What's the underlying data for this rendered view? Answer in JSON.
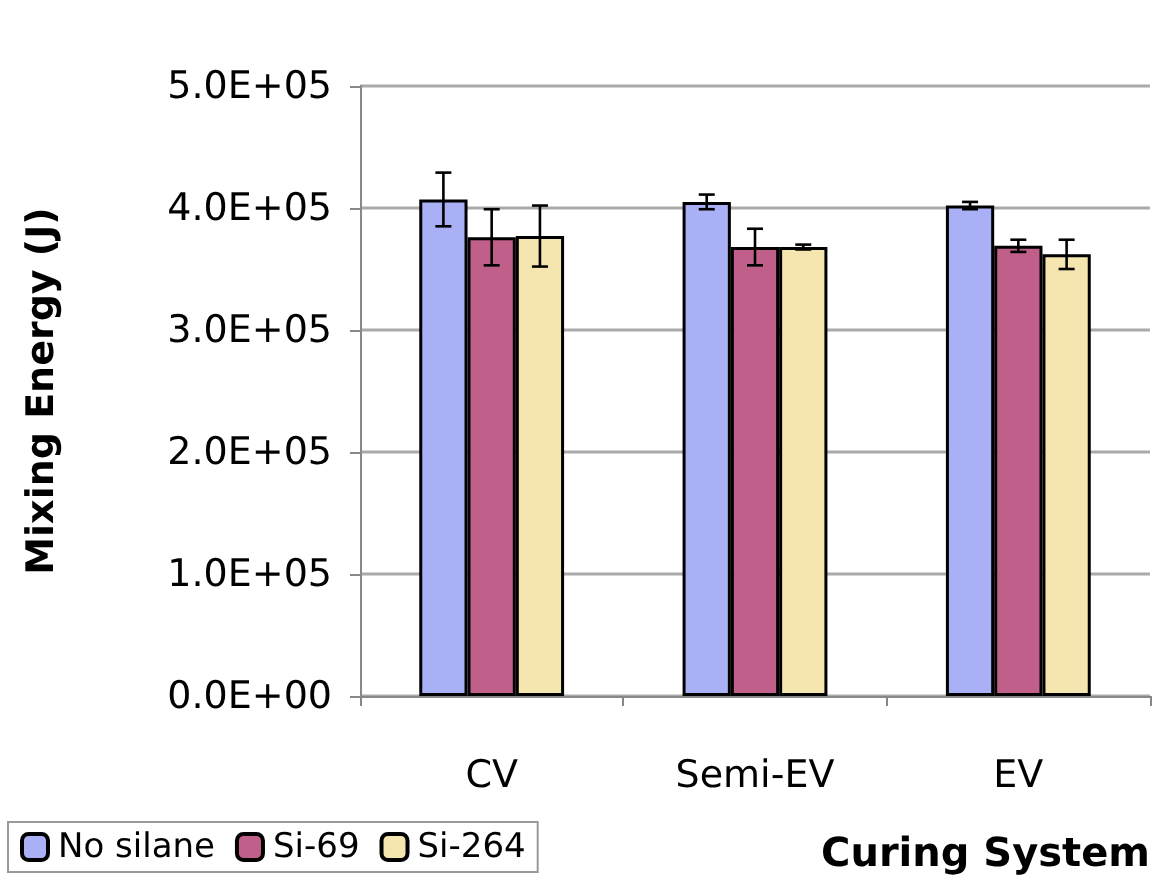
{
  "chart_data": {
    "type": "bar",
    "xlabel": "Curing System",
    "ylabel": "Mixing Energy (J)",
    "categories": [
      "CV",
      "Semi-EV",
      "EV"
    ],
    "series": [
      {
        "name": "No silane",
        "color": "#aab0f5",
        "values": [
          407000,
          405000,
          402000
        ],
        "errors": [
          22000,
          6000,
          3000
        ]
      },
      {
        "name": "Si-69",
        "color": "#c0608a",
        "values": [
          376000,
          368000,
          369000
        ],
        "errors": [
          23000,
          15000,
          5000
        ]
      },
      {
        "name": "Si-264",
        "color": "#f5e6b0",
        "values": [
          377000,
          368000,
          362000
        ],
        "errors": [
          25000,
          2000,
          12000
        ]
      }
    ],
    "ylim": [
      0,
      500000
    ],
    "yticks": [
      {
        "value": 0,
        "label": "0.0E+00"
      },
      {
        "value": 100000,
        "label": "1.0E+05"
      },
      {
        "value": 200000,
        "label": "2.0E+05"
      },
      {
        "value": 300000,
        "label": "3.0E+05"
      },
      {
        "value": 400000,
        "label": "4.0E+05"
      },
      {
        "value": 500000,
        "label": "5.0E+05"
      }
    ],
    "grid": "y",
    "legend": "bottom left"
  }
}
